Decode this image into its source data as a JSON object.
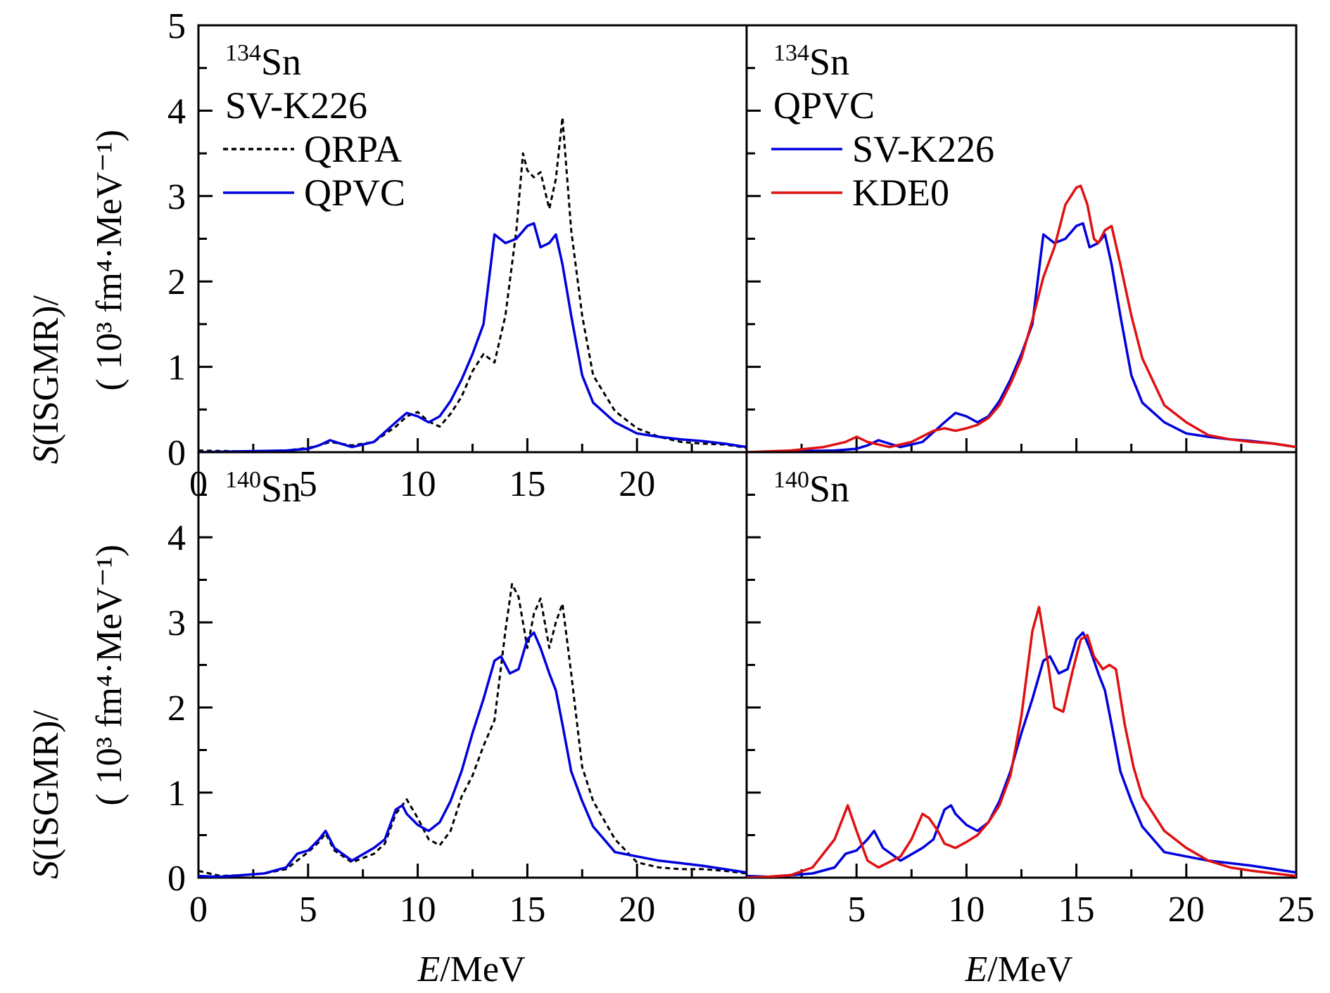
{
  "figure": {
    "xlabel_italic": "E",
    "xlabel_rest": "/MeV",
    "ylabel_line1_italic": "S",
    "ylabel_line1_rest": "(ISGMR)/",
    "ylabel_line2": "( 10³ fm⁴·MeV⁻¹)"
  },
  "chart_data": [
    {
      "type": "line",
      "panel": "top-left",
      "nucleus_mass": "134",
      "nucleus_symbol": "Sn",
      "model_label": "SV-K226",
      "xlim": [
        0,
        25
      ],
      "ylim": [
        0,
        5
      ],
      "xticks": [
        "0",
        "5",
        "10",
        "15",
        "20"
      ],
      "yticks": [
        "0",
        "1",
        "2",
        "3",
        "4",
        "5"
      ],
      "legend_position": "top-left",
      "series": [
        {
          "name": "QRPA",
          "color": "#000000",
          "style": "dashed",
          "x": [
            0,
            2,
            4,
            5,
            5.5,
            6,
            7,
            8,
            9,
            9.5,
            10,
            10.5,
            11,
            11.5,
            12,
            12.5,
            13,
            13.5,
            14,
            14.5,
            14.8,
            15,
            15.3,
            15.6,
            16,
            16.3,
            16.6,
            17,
            17.5,
            18,
            19,
            20,
            21,
            22,
            23,
            24,
            25
          ],
          "y": [
            0.02,
            0.01,
            0.02,
            0.05,
            0.08,
            0.12,
            0.08,
            0.12,
            0.3,
            0.42,
            0.47,
            0.36,
            0.3,
            0.45,
            0.65,
            0.95,
            1.15,
            1.05,
            1.6,
            2.6,
            3.5,
            3.3,
            3.22,
            3.28,
            2.85,
            3.2,
            3.92,
            2.6,
            1.6,
            0.9,
            0.48,
            0.28,
            0.18,
            0.12,
            0.1,
            0.09,
            0.05
          ]
        },
        {
          "name": "QPVC",
          "color": "#0000dd",
          "style": "solid",
          "x": [
            0,
            2,
            4,
            5,
            5.5,
            6,
            6.5,
            7,
            8,
            9,
            9.5,
            10,
            10.5,
            11,
            11.5,
            12,
            12.5,
            13,
            13.5,
            14,
            14.5,
            15,
            15.3,
            15.6,
            16,
            16.3,
            16.6,
            17,
            17.5,
            18,
            19,
            20,
            21,
            22,
            23,
            24,
            25
          ],
          "y": [
            0.0,
            0.01,
            0.02,
            0.04,
            0.08,
            0.14,
            0.1,
            0.06,
            0.12,
            0.35,
            0.46,
            0.42,
            0.35,
            0.42,
            0.6,
            0.85,
            1.15,
            1.5,
            2.55,
            2.45,
            2.5,
            2.65,
            2.68,
            2.4,
            2.45,
            2.55,
            2.2,
            1.6,
            0.9,
            0.58,
            0.35,
            0.22,
            0.18,
            0.15,
            0.13,
            0.1,
            0.06
          ]
        }
      ]
    },
    {
      "type": "line",
      "panel": "top-right",
      "nucleus_mass": "134",
      "nucleus_symbol": "Sn",
      "model_label": "QPVC",
      "xlim": [
        0,
        25
      ],
      "ylim": [
        0,
        5
      ],
      "legend_position": "top-left",
      "series": [
        {
          "name": "SV-K226",
          "color": "#0000dd",
          "style": "solid",
          "x": [
            0,
            2,
            4,
            5,
            5.5,
            6,
            6.5,
            7,
            8,
            9,
            9.5,
            10,
            10.5,
            11,
            11.5,
            12,
            12.5,
            13,
            13.5,
            14,
            14.5,
            15,
            15.3,
            15.6,
            16,
            16.3,
            16.6,
            17,
            17.5,
            18,
            19,
            20,
            21,
            22,
            23,
            24,
            25
          ],
          "y": [
            0.0,
            0.01,
            0.02,
            0.04,
            0.08,
            0.14,
            0.1,
            0.06,
            0.12,
            0.35,
            0.46,
            0.42,
            0.35,
            0.42,
            0.6,
            0.85,
            1.15,
            1.5,
            2.55,
            2.45,
            2.5,
            2.65,
            2.68,
            2.4,
            2.45,
            2.55,
            2.2,
            1.6,
            0.9,
            0.58,
            0.35,
            0.22,
            0.18,
            0.15,
            0.13,
            0.1,
            0.06
          ]
        },
        {
          "name": "KDE0",
          "color": "#e01010",
          "style": "solid",
          "x": [
            0,
            2,
            3.5,
            4.5,
            5,
            5.5,
            6.5,
            7.5,
            8.5,
            9,
            9.5,
            10,
            10.5,
            11,
            11.5,
            12,
            12.5,
            13,
            13.5,
            14,
            14.5,
            15,
            15.2,
            15.5,
            15.8,
            16,
            16.3,
            16.6,
            17,
            17.5,
            18,
            19,
            20,
            21,
            22,
            23,
            24,
            25
          ],
          "y": [
            0.0,
            0.02,
            0.06,
            0.12,
            0.18,
            0.12,
            0.06,
            0.12,
            0.25,
            0.28,
            0.25,
            0.28,
            0.32,
            0.4,
            0.55,
            0.8,
            1.1,
            1.55,
            2.05,
            2.4,
            2.9,
            3.1,
            3.12,
            2.9,
            2.5,
            2.45,
            2.6,
            2.65,
            2.2,
            1.6,
            1.1,
            0.55,
            0.35,
            0.2,
            0.15,
            0.12,
            0.1,
            0.06
          ]
        }
      ]
    },
    {
      "type": "line",
      "panel": "bottom-left",
      "nucleus_mass": "140",
      "nucleus_symbol": "Sn",
      "xlim": [
        0,
        25
      ],
      "ylim": [
        0,
        5
      ],
      "xticks": [
        "0",
        "5",
        "10",
        "15",
        "20"
      ],
      "yticks": [
        "0",
        "1",
        "2",
        "3",
        "4"
      ],
      "series": [
        {
          "name": "QRPA",
          "color": "#000000",
          "style": "dashed",
          "x": [
            0,
            1,
            2,
            3,
            4,
            4.5,
            5,
            5.5,
            5.8,
            6.2,
            7,
            8,
            8.5,
            9,
            9.5,
            10,
            10.5,
            11,
            11.5,
            12,
            12.5,
            13,
            13.5,
            14,
            14.3,
            14.6,
            15,
            15.3,
            15.6,
            16,
            16.3,
            16.6,
            17,
            17.5,
            18,
            19,
            20,
            21,
            22,
            23,
            24,
            25
          ],
          "y": [
            0.08,
            0.02,
            0.03,
            0.05,
            0.1,
            0.2,
            0.3,
            0.42,
            0.52,
            0.32,
            0.18,
            0.28,
            0.4,
            0.75,
            0.92,
            0.7,
            0.45,
            0.38,
            0.55,
            0.95,
            1.2,
            1.55,
            1.85,
            2.9,
            3.45,
            3.3,
            2.7,
            3.1,
            3.28,
            2.7,
            3.0,
            3.22,
            2.4,
            1.3,
            0.9,
            0.45,
            0.18,
            0.12,
            0.1,
            0.1,
            0.08,
            0.05
          ]
        },
        {
          "name": "QPVC",
          "color": "#0000dd",
          "style": "solid",
          "x": [
            0,
            1,
            2,
            3,
            4,
            4.5,
            5,
            5.5,
            5.8,
            6.2,
            7,
            8,
            8.5,
            9,
            9.3,
            9.5,
            10,
            10.5,
            11,
            11.5,
            12,
            12.5,
            13,
            13.5,
            13.8,
            14.2,
            14.6,
            15,
            15.3,
            15.6,
            16,
            16.3,
            16.6,
            17,
            17.5,
            18,
            19,
            20,
            21,
            22,
            23,
            24,
            25
          ],
          "y": [
            0.02,
            0.01,
            0.03,
            0.05,
            0.12,
            0.28,
            0.32,
            0.45,
            0.55,
            0.35,
            0.2,
            0.35,
            0.45,
            0.8,
            0.85,
            0.75,
            0.62,
            0.55,
            0.65,
            0.9,
            1.25,
            1.7,
            2.1,
            2.55,
            2.6,
            2.4,
            2.45,
            2.8,
            2.88,
            2.7,
            2.4,
            2.2,
            1.8,
            1.25,
            0.9,
            0.6,
            0.3,
            0.25,
            0.2,
            0.17,
            0.14,
            0.1,
            0.06
          ]
        }
      ]
    },
    {
      "type": "line",
      "panel": "bottom-right",
      "nucleus_mass": "140",
      "nucleus_symbol": "Sn",
      "xlim": [
        0,
        25
      ],
      "ylim": [
        0,
        5
      ],
      "xticks": [
        "0",
        "5",
        "10",
        "15",
        "20",
        "25"
      ],
      "series": [
        {
          "name": "SV-K226",
          "color": "#0000dd",
          "style": "solid",
          "x": [
            0,
            1,
            2,
            3,
            4,
            4.5,
            5,
            5.5,
            5.8,
            6.2,
            7,
            8,
            8.5,
            9,
            9.3,
            9.5,
            10,
            10.5,
            11,
            11.5,
            12,
            12.5,
            13,
            13.5,
            13.8,
            14.2,
            14.6,
            15,
            15.3,
            15.6,
            16,
            16.3,
            16.6,
            17,
            17.5,
            18,
            19,
            20,
            21,
            22,
            23,
            24,
            25
          ],
          "y": [
            0.02,
            0.01,
            0.03,
            0.05,
            0.12,
            0.28,
            0.32,
            0.45,
            0.55,
            0.35,
            0.2,
            0.35,
            0.45,
            0.8,
            0.85,
            0.75,
            0.62,
            0.55,
            0.65,
            0.9,
            1.25,
            1.7,
            2.1,
            2.55,
            2.6,
            2.4,
            2.45,
            2.8,
            2.88,
            2.7,
            2.4,
            2.2,
            1.8,
            1.25,
            0.9,
            0.6,
            0.3,
            0.25,
            0.2,
            0.17,
            0.14,
            0.1,
            0.06
          ]
        },
        {
          "name": "KDE0",
          "color": "#e01010",
          "style": "solid",
          "x": [
            0,
            1,
            2,
            3,
            4,
            4.6,
            5,
            5.5,
            6,
            7,
            7.5,
            8,
            8.3,
            8.7,
            9,
            9.5,
            10,
            10.5,
            11,
            11.5,
            12,
            12.5,
            13,
            13.3,
            13.6,
            14,
            14.4,
            14.8,
            15.2,
            15.5,
            15.8,
            16.2,
            16.5,
            16.8,
            17.2,
            17.6,
            18,
            19,
            20,
            21,
            22,
            23,
            24,
            25
          ],
          "y": [
            0.0,
            0.01,
            0.03,
            0.12,
            0.45,
            0.85,
            0.55,
            0.2,
            0.12,
            0.25,
            0.45,
            0.75,
            0.7,
            0.55,
            0.4,
            0.35,
            0.42,
            0.5,
            0.65,
            0.85,
            1.2,
            1.9,
            2.9,
            3.18,
            2.7,
            2.0,
            1.95,
            2.4,
            2.8,
            2.85,
            2.6,
            2.45,
            2.5,
            2.45,
            1.8,
            1.3,
            0.95,
            0.55,
            0.35,
            0.2,
            0.12,
            0.08,
            0.05,
            0.02
          ]
        }
      ]
    }
  ]
}
